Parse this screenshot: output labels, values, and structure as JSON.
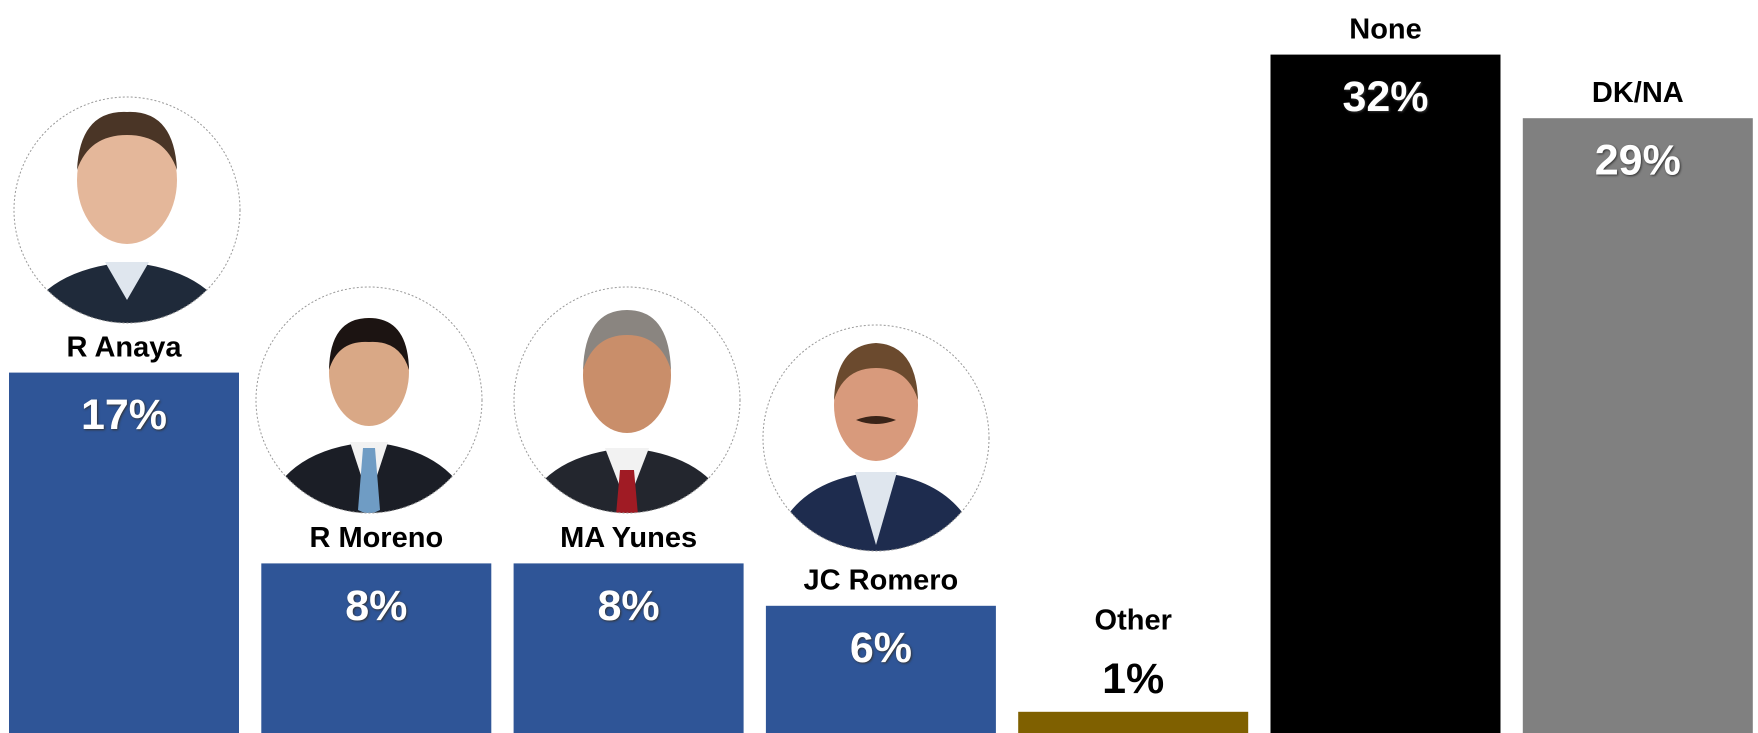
{
  "chart_data": {
    "type": "bar",
    "categories": [
      "R Anaya",
      "R Moreno",
      "MA Yunes",
      "JC Romero",
      "Other",
      "None",
      "DK/NA"
    ],
    "values": [
      17,
      8,
      8,
      6,
      1,
      32,
      29
    ],
    "value_labels": [
      "17%",
      "8%",
      "8%",
      "6%",
      "1%",
      "32%",
      "29%"
    ],
    "colors": [
      "#2f5597",
      "#2f5597",
      "#2f5597",
      "#2f5597",
      "#7f6000",
      "#000000",
      "#808080"
    ]
  }
}
